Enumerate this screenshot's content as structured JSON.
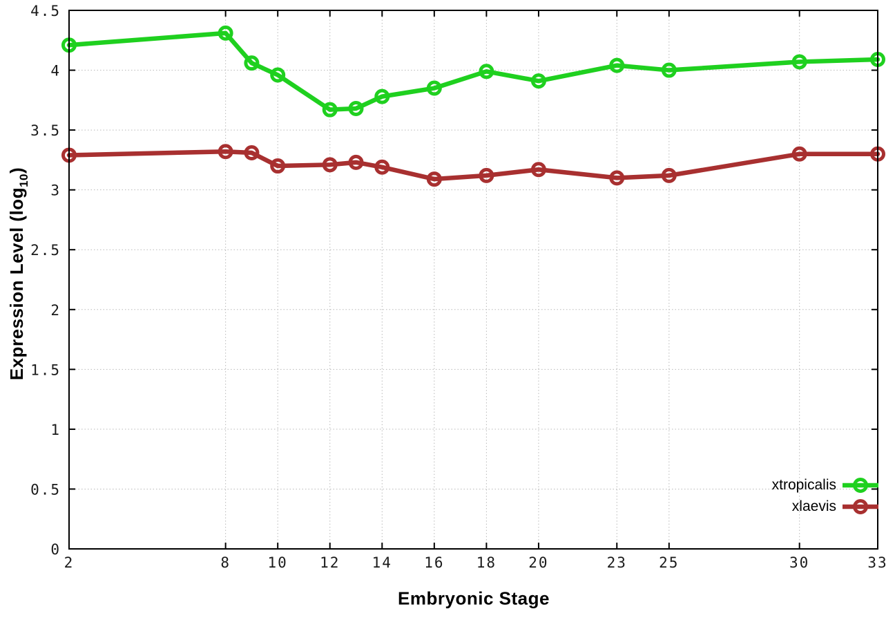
{
  "chart_data": {
    "type": "line",
    "title": "",
    "xlabel": "Embryonic Stage",
    "ylabel": "Expression Level (log10)",
    "ylabel_parts": {
      "pre": "Expression Level (log",
      "sub": "10",
      "post": ")"
    },
    "xlim": [
      2,
      33
    ],
    "ylim": [
      0,
      4.5
    ],
    "grid": true,
    "grid_color": "#b8b8b8",
    "border_color": "#000000",
    "background_color": "#ffffff",
    "legend_position": "bottom-right",
    "xticks": [
      2,
      8,
      10,
      12,
      14,
      16,
      18,
      20,
      23,
      25,
      30,
      33
    ],
    "xtick_labels": [
      "2",
      "8",
      "10",
      "12",
      "14",
      "16",
      "18",
      "20",
      "23",
      "25",
      "30",
      "33"
    ],
    "yticks": [
      0,
      0.5,
      1,
      1.5,
      2,
      2.5,
      3,
      3.5,
      4,
      4.5
    ],
    "ytick_labels": [
      "0",
      "0.5",
      "1",
      "1.5",
      "2",
      "2.5",
      "3",
      "3.5",
      "4",
      "4.5"
    ],
    "x": [
      2,
      8,
      9,
      10,
      12,
      13,
      14,
      16,
      18,
      20,
      23,
      25,
      30,
      33
    ],
    "series": [
      {
        "name": "xtropicalis",
        "color": "#1fd01f",
        "values": [
          4.21,
          4.31,
          4.06,
          3.96,
          3.67,
          3.68,
          3.78,
          3.85,
          3.99,
          3.91,
          4.04,
          4.0,
          4.07,
          4.09
        ]
      },
      {
        "name": "xlaevis",
        "color": "#a83030",
        "values": [
          3.29,
          3.32,
          3.31,
          3.2,
          3.21,
          3.23,
          3.19,
          3.09,
          3.12,
          3.17,
          3.1,
          3.12,
          3.3,
          3.3
        ]
      }
    ]
  }
}
